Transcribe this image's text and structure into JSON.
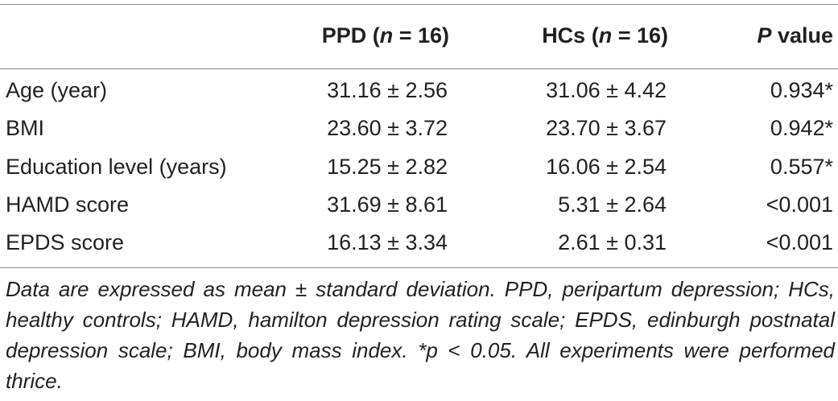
{
  "table": {
    "headers": {
      "label": "",
      "ppd": "PPD (n = 16)",
      "ppd_prefix": "PPD (",
      "ppd_n": "n",
      "ppd_suffix": " = 16)",
      "hc_prefix": "HCs (",
      "hc_n": "n",
      "hc_suffix": " = 16)",
      "p_italic": "P",
      "p_suffix": " value"
    },
    "rows": [
      {
        "label": "Age (year)",
        "ppd": "31.16 ± 2.56",
        "hc": "31.06 ± 4.42",
        "p": "0.934*"
      },
      {
        "label": "BMI",
        "ppd": "23.60 ± 3.72",
        "hc": "23.70 ± 3.67",
        "p": "0.942*"
      },
      {
        "label": "Education level (years)",
        "ppd": "15.25 ± 2.82",
        "hc": "16.06 ± 2.54",
        "p": "0.557*"
      },
      {
        "label": "HAMD score",
        "ppd": "31.69 ± 8.61",
        "hc": "5.31 ± 2.64",
        "p": "<0.001"
      },
      {
        "label": "EPDS score",
        "ppd": "16.13 ± 3.34",
        "hc": "2.61 ± 0.31",
        "p": "<0.001"
      }
    ],
    "footnote": "Data are expressed as mean ± standard deviation. PPD, peripartum depression; HCs, healthy controls; HAMD, hamilton depression rating scale; EPDS, edinburgh postnatal depression scale; BMI, body mass index. *p < 0.05. All experiments were performed thrice."
  }
}
